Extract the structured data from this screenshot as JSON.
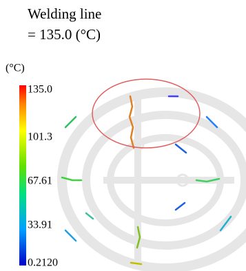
{
  "header": {
    "title": "Welding line",
    "subtitle": "= 135.0 (°C)"
  },
  "legend": {
    "unit": "(°C)",
    "labels": [
      "135.0",
      "101.3",
      "67.61",
      "33.91",
      "0.2120"
    ]
  }
}
